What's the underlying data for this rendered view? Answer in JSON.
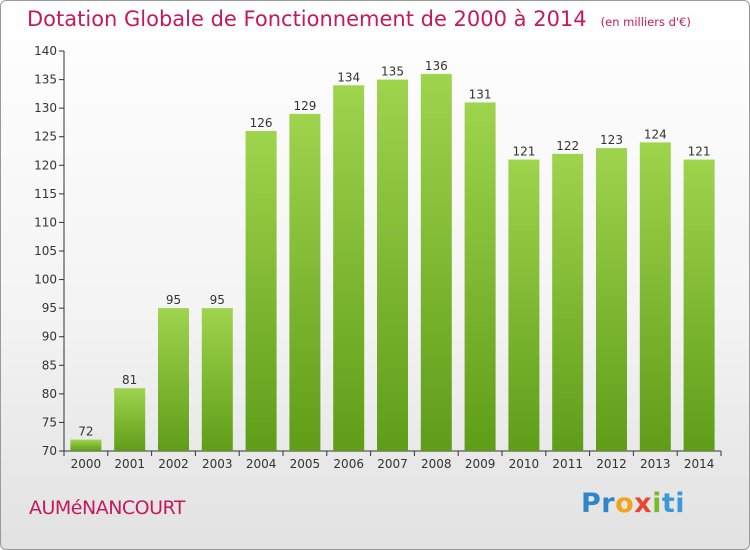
{
  "header": {
    "title": "Dotation Globale de Fonctionnement de 2000 à 2014",
    "unit": "(en milliers d'€)"
  },
  "footer": {
    "commune": "AUMéNANCOURT",
    "logo": "Proxiti"
  },
  "colors": {
    "accent": "#c41a5a",
    "bar_light": "#9fd44d",
    "bar_dark": "#5f9d18"
  },
  "chart_data": {
    "type": "bar",
    "categories": [
      "2000",
      "2001",
      "2002",
      "2003",
      "2004",
      "2005",
      "2006",
      "2007",
      "2008",
      "2009",
      "2010",
      "2011",
      "2012",
      "2013",
      "2014"
    ],
    "values": [
      72,
      81,
      95,
      95,
      126,
      129,
      134,
      135,
      136,
      131,
      121,
      122,
      123,
      124,
      121
    ],
    "title": "Dotation Globale de Fonctionnement de 2000 à 2014",
    "ylim": [
      70,
      140
    ],
    "yticks": [
      70,
      75,
      80,
      85,
      90,
      95,
      100,
      105,
      110,
      115,
      120,
      125,
      130,
      135,
      140
    ],
    "grid": false,
    "legend": "none"
  }
}
